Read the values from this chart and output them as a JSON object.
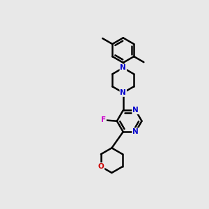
{
  "background_color": "#e8e8e8",
  "bond_color": "#000000",
  "N_color": "#0000cc",
  "O_color": "#cc0000",
  "F_color": "#cc00cc",
  "line_width": 1.8,
  "figsize": [
    3.0,
    3.0
  ],
  "dpi": 100,
  "xlim": [
    0,
    10
  ],
  "ylim": [
    0,
    10
  ]
}
